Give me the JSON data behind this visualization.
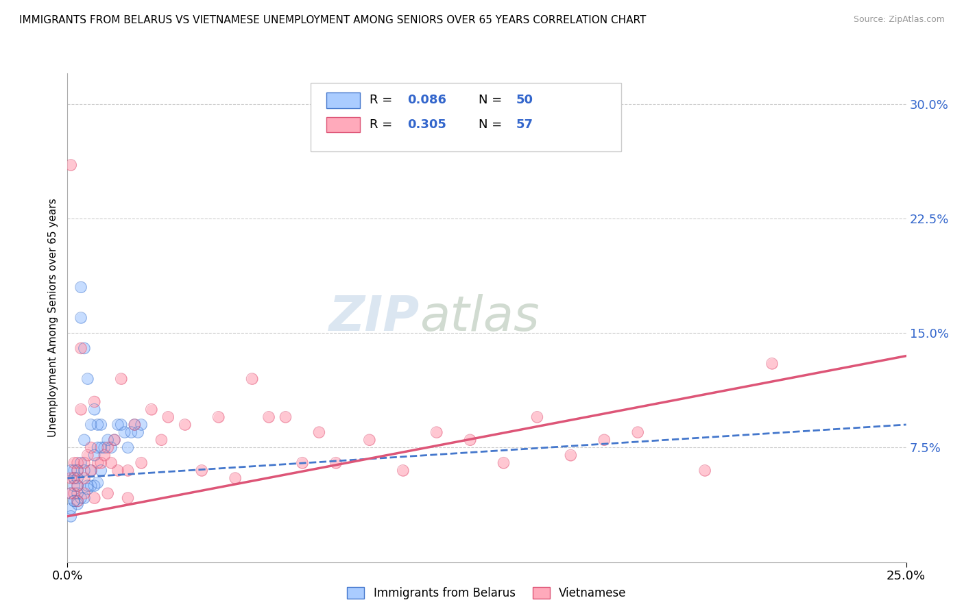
{
  "title": "IMMIGRANTS FROM BELARUS VS VIETNAMESE UNEMPLOYMENT AMONG SENIORS OVER 65 YEARS CORRELATION CHART",
  "source": "Source: ZipAtlas.com",
  "ylabel": "Unemployment Among Seniors over 65 years",
  "legend_label1": "Immigrants from Belarus",
  "legend_label2": "Vietnamese",
  "r1": 0.086,
  "n1": 50,
  "r2": 0.305,
  "n2": 57,
  "xmin": 0.0,
  "xmax": 0.25,
  "ymin": 0.0,
  "ymax": 0.32,
  "xtick_vals": [
    0.0,
    0.25
  ],
  "xtick_labels": [
    "0.0%",
    "25.0%"
  ],
  "ytick_vals": [
    0.075,
    0.15,
    0.225,
    0.3
  ],
  "ytick_labels": [
    "7.5%",
    "15.0%",
    "22.5%",
    "30.0%"
  ],
  "color1": "#aaccff",
  "color2": "#ffaabb",
  "line_color1": "#4477cc",
  "line_color2": "#dd5577",
  "watermark_zip": "ZIP",
  "watermark_atlas": "atlas",
  "belarus_x": [
    0.001,
    0.001,
    0.001,
    0.002,
    0.002,
    0.002,
    0.002,
    0.003,
    0.003,
    0.003,
    0.003,
    0.003,
    0.004,
    0.004,
    0.004,
    0.005,
    0.005,
    0.005,
    0.006,
    0.006,
    0.007,
    0.007,
    0.008,
    0.008,
    0.009,
    0.009,
    0.01,
    0.01,
    0.011,
    0.012,
    0.013,
    0.014,
    0.015,
    0.016,
    0.017,
    0.018,
    0.019,
    0.02,
    0.021,
    0.022,
    0.001,
    0.002,
    0.003,
    0.004,
    0.005,
    0.006,
    0.007,
    0.008,
    0.009,
    0.01
  ],
  "belarus_y": [
    0.06,
    0.045,
    0.03,
    0.055,
    0.05,
    0.06,
    0.04,
    0.06,
    0.055,
    0.05,
    0.045,
    0.04,
    0.18,
    0.16,
    0.065,
    0.14,
    0.08,
    0.06,
    0.12,
    0.05,
    0.09,
    0.06,
    0.1,
    0.07,
    0.09,
    0.075,
    0.09,
    0.075,
    0.075,
    0.08,
    0.075,
    0.08,
    0.09,
    0.09,
    0.085,
    0.075,
    0.085,
    0.09,
    0.085,
    0.09,
    0.035,
    0.04,
    0.038,
    0.042,
    0.042,
    0.048,
    0.05,
    0.05,
    0.052,
    0.06
  ],
  "vietnamese_x": [
    0.001,
    0.001,
    0.002,
    0.002,
    0.003,
    0.003,
    0.003,
    0.004,
    0.004,
    0.005,
    0.005,
    0.006,
    0.007,
    0.007,
    0.008,
    0.009,
    0.01,
    0.011,
    0.012,
    0.013,
    0.014,
    0.015,
    0.016,
    0.018,
    0.02,
    0.022,
    0.025,
    0.028,
    0.03,
    0.035,
    0.04,
    0.045,
    0.05,
    0.055,
    0.06,
    0.065,
    0.07,
    0.075,
    0.08,
    0.09,
    0.1,
    0.11,
    0.12,
    0.13,
    0.14,
    0.15,
    0.16,
    0.17,
    0.19,
    0.21,
    0.001,
    0.002,
    0.003,
    0.005,
    0.008,
    0.012,
    0.018
  ],
  "vietnamese_y": [
    0.055,
    0.045,
    0.065,
    0.055,
    0.065,
    0.06,
    0.05,
    0.14,
    0.1,
    0.055,
    0.065,
    0.07,
    0.075,
    0.06,
    0.105,
    0.065,
    0.065,
    0.07,
    0.075,
    0.065,
    0.08,
    0.06,
    0.12,
    0.06,
    0.09,
    0.065,
    0.1,
    0.08,
    0.095,
    0.09,
    0.06,
    0.095,
    0.055,
    0.12,
    0.095,
    0.095,
    0.065,
    0.085,
    0.065,
    0.08,
    0.06,
    0.085,
    0.08,
    0.065,
    0.095,
    0.07,
    0.08,
    0.085,
    0.06,
    0.13,
    0.26,
    0.045,
    0.04,
    0.045,
    0.042,
    0.045,
    0.042
  ],
  "trend1_x": [
    0.0,
    0.25
  ],
  "trend1_y": [
    0.055,
    0.09
  ],
  "trend2_x": [
    0.0,
    0.25
  ],
  "trend2_y": [
    0.03,
    0.135
  ]
}
